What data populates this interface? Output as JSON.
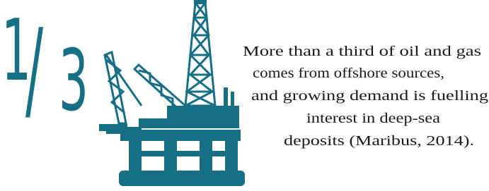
{
  "figure": {
    "numerator": "1",
    "separator": "/",
    "denominator": "3"
  },
  "caption": {
    "lines": [
      "More than a third of oil and gas",
      "comes from offshore sources,",
      "and growing demand is fuelling",
      "interest in deep-sea",
      "deposits (Maribus, 2014)."
    ]
  }
}
